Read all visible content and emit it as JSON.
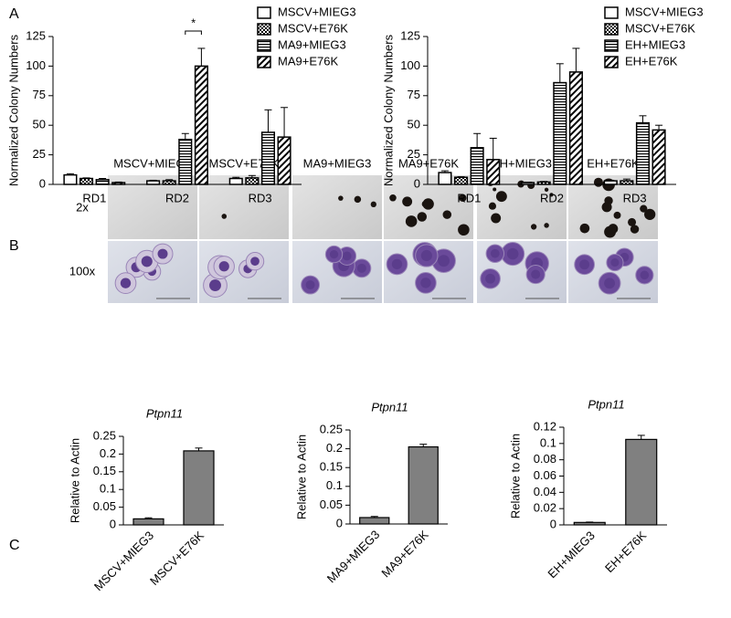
{
  "panels": [
    "A",
    "B",
    "C"
  ],
  "micrographs": {
    "columns": [
      "MSCV+MIEG3",
      "MSCV+E76K",
      "MA9+MIEG3",
      "MA9+E76K",
      "EH+MIEG3",
      "EH+E76K"
    ],
    "rows": [
      "2x",
      "100x"
    ]
  },
  "chart_data": [
    {
      "type": "grouped-bar",
      "ylabel": "Normalized Colony Numbers",
      "categories": [
        "RD1",
        "RD2",
        "RD3"
      ],
      "ylim": [
        0,
        125
      ],
      "yticks": [
        0,
        25,
        50,
        75,
        100,
        125
      ],
      "legend": "top-right",
      "annotation": "*",
      "series": [
        {
          "name": "MSCV+MIEG3",
          "color": "#ffffff",
          "pattern": "none",
          "values": [
            8,
            3,
            5
          ],
          "errors": [
            1,
            0.5,
            1
          ]
        },
        {
          "name": "MSCV+E76K",
          "color": "#ffffff",
          "pattern": "checker",
          "values": [
            5,
            3,
            5.5
          ],
          "errors": [
            0.5,
            1,
            2
          ]
        },
        {
          "name": "MA9+MIEG3",
          "color": "#ffffff",
          "pattern": "hlines",
          "values": [
            4,
            38,
            44
          ],
          "errors": [
            1,
            5,
            19
          ]
        },
        {
          "name": "MA9+E76K",
          "color": "#ffffff",
          "pattern": "diag",
          "values": [
            1.5,
            100,
            40
          ],
          "errors": [
            0.5,
            15,
            25
          ]
        }
      ]
    },
    {
      "type": "grouped-bar",
      "ylabel": "Normalized Colony Numbers",
      "categories": [
        "RD1",
        "RD2",
        "RD3"
      ],
      "ylim": [
        0,
        125
      ],
      "yticks": [
        0,
        25,
        50,
        75,
        100,
        125
      ],
      "legend": "top-right",
      "series": [
        {
          "name": "MSCV+MIEG3",
          "color": "#ffffff",
          "pattern": "none",
          "values": [
            10,
            1.5,
            3
          ],
          "errors": [
            1.5,
            0.3,
            0.5
          ]
        },
        {
          "name": "MSCV+E76K",
          "color": "#ffffff",
          "pattern": "checker",
          "values": [
            6,
            2,
            3
          ],
          "errors": [
            0.5,
            0.5,
            1.5
          ]
        },
        {
          "name": "EH+MIEG3",
          "color": "#ffffff",
          "pattern": "hlines",
          "values": [
            31,
            86,
            52
          ],
          "errors": [
            12,
            16,
            6
          ]
        },
        {
          "name": "EH+E76K",
          "color": "#ffffff",
          "pattern": "diag",
          "values": [
            21,
            95,
            46
          ],
          "errors": [
            18,
            20,
            4
          ]
        }
      ]
    },
    {
      "type": "bar",
      "title": "Ptpn11",
      "ylabel": "Relative to Actin",
      "categories": [
        "MSCV+MIEG3",
        "MSCV+E76K"
      ],
      "values": [
        0.017,
        0.209
      ],
      "errors": [
        0.003,
        0.008
      ],
      "color": "#808080",
      "ylim": [
        0,
        0.25
      ],
      "yticks": [
        0,
        0.05,
        0.1,
        0.15,
        0.2,
        0.25
      ]
    },
    {
      "type": "bar",
      "title": "Ptpn11",
      "ylabel": "Relative to Actin",
      "categories": [
        "MA9+MIEG3",
        "MA9+E76K"
      ],
      "values": [
        0.017,
        0.205
      ],
      "errors": [
        0.003,
        0.007
      ],
      "color": "#808080",
      "ylim": [
        0,
        0.25
      ],
      "yticks": [
        0,
        0.05,
        0.1,
        0.15,
        0.2,
        0.25
      ]
    },
    {
      "type": "bar",
      "title": "Ptpn11",
      "ylabel": "Relative to Actin",
      "categories": [
        "EH+MIEG3",
        "EH+E76K"
      ],
      "values": [
        0.003,
        0.105
      ],
      "errors": [
        0.0005,
        0.005
      ],
      "color": "#808080",
      "ylim": [
        0,
        0.12
      ],
      "yticks": [
        0,
        0.02,
        0.04,
        0.06,
        0.08,
        0.1,
        0.12
      ]
    }
  ]
}
